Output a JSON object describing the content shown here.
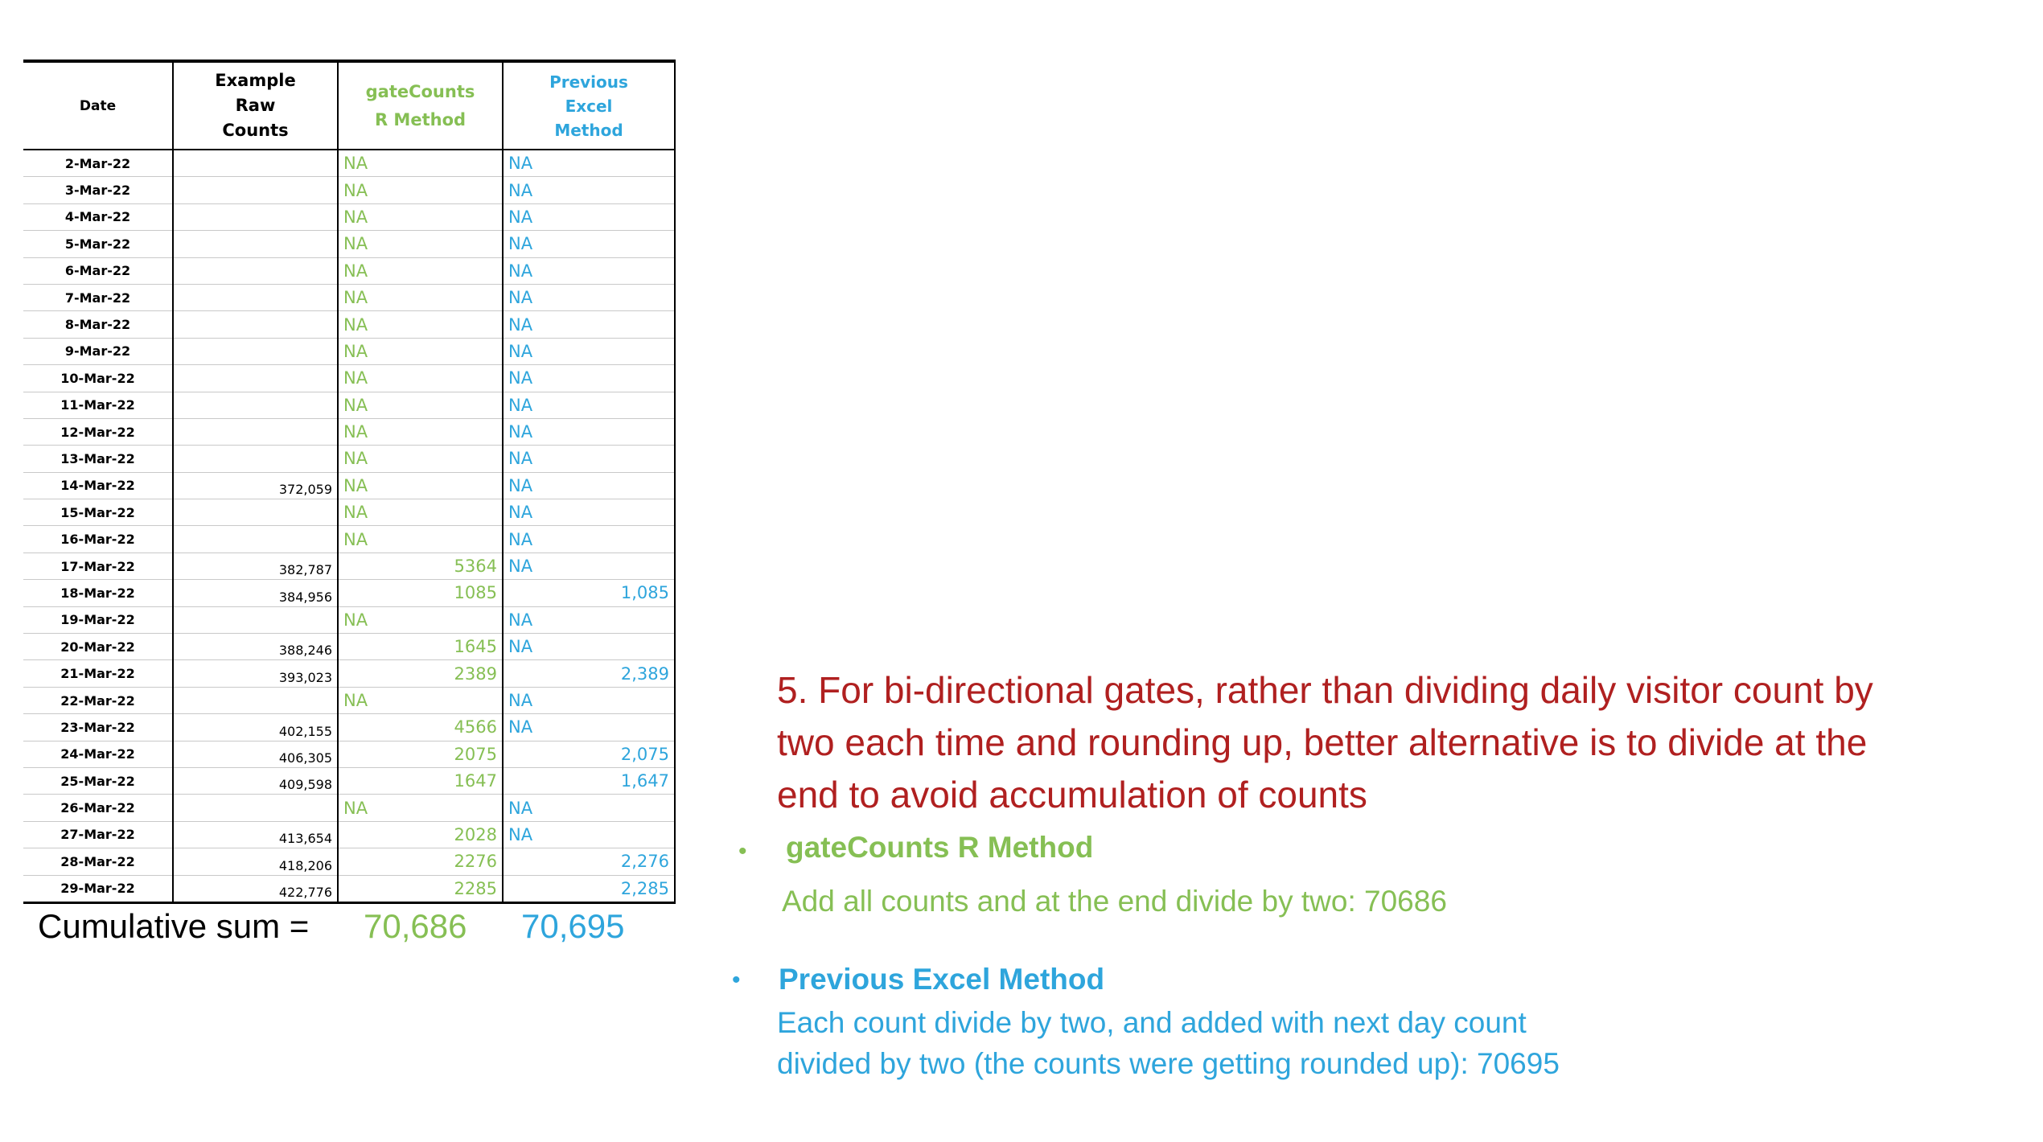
{
  "table": {
    "headers": {
      "date": "Date",
      "raw": [
        "Example",
        "Raw",
        "Counts"
      ],
      "r_method": [
        "gateCounts",
        "R Method"
      ],
      "excel_method": [
        "Previous",
        "Excel",
        "Method"
      ]
    },
    "rows": [
      {
        "date": "2-Mar-22",
        "raw": "",
        "r": "NA",
        "excel": "NA"
      },
      {
        "date": "3-Mar-22",
        "raw": "",
        "r": "NA",
        "excel": "NA"
      },
      {
        "date": "4-Mar-22",
        "raw": "",
        "r": "NA",
        "excel": "NA"
      },
      {
        "date": "5-Mar-22",
        "raw": "",
        "r": "NA",
        "excel": "NA"
      },
      {
        "date": "6-Mar-22",
        "raw": "",
        "r": "NA",
        "excel": "NA"
      },
      {
        "date": "7-Mar-22",
        "raw": "",
        "r": "NA",
        "excel": "NA"
      },
      {
        "date": "8-Mar-22",
        "raw": "",
        "r": "NA",
        "excel": "NA"
      },
      {
        "date": "9-Mar-22",
        "raw": "",
        "r": "NA",
        "excel": "NA"
      },
      {
        "date": "10-Mar-22",
        "raw": "",
        "r": "NA",
        "excel": "NA"
      },
      {
        "date": "11-Mar-22",
        "raw": "",
        "r": "NA",
        "excel": "NA"
      },
      {
        "date": "12-Mar-22",
        "raw": "",
        "r": "NA",
        "excel": "NA"
      },
      {
        "date": "13-Mar-22",
        "raw": "",
        "r": "NA",
        "excel": "NA"
      },
      {
        "date": "14-Mar-22",
        "raw": "372,059",
        "r": "NA",
        "excel": "NA"
      },
      {
        "date": "15-Mar-22",
        "raw": "",
        "r": "NA",
        "excel": "NA"
      },
      {
        "date": "16-Mar-22",
        "raw": "",
        "r": "NA",
        "excel": "NA"
      },
      {
        "date": "17-Mar-22",
        "raw": "382,787",
        "r": "5364",
        "excel": "NA"
      },
      {
        "date": "18-Mar-22",
        "raw": "384,956",
        "r": "1085",
        "excel": "1,085"
      },
      {
        "date": "19-Mar-22",
        "raw": "",
        "r": "NA",
        "excel": "NA"
      },
      {
        "date": "20-Mar-22",
        "raw": "388,246",
        "r": "1645",
        "excel": "NA"
      },
      {
        "date": "21-Mar-22",
        "raw": "393,023",
        "r": "2389",
        "excel": "2,389"
      },
      {
        "date": "22-Mar-22",
        "raw": "",
        "r": "NA",
        "excel": "NA"
      },
      {
        "date": "23-Mar-22",
        "raw": "402,155",
        "r": "4566",
        "excel": "NA"
      },
      {
        "date": "24-Mar-22",
        "raw": "406,305",
        "r": "2075",
        "excel": "2,075"
      },
      {
        "date": "25-Mar-22",
        "raw": "409,598",
        "r": "1647",
        "excel": "1,647"
      },
      {
        "date": "26-Mar-22",
        "raw": "",
        "r": "NA",
        "excel": "NA"
      },
      {
        "date": "27-Mar-22",
        "raw": "413,654",
        "r": "2028",
        "excel": "NA"
      },
      {
        "date": "28-Mar-22",
        "raw": "418,206",
        "r": "2276",
        "excel": "2,276"
      },
      {
        "date": "29-Mar-22",
        "raw": "422,776",
        "r": "2285",
        "excel": "2,285"
      }
    ]
  },
  "cumulative": {
    "label": "Cumulative sum =",
    "r_value": "70,686",
    "excel_value": "70,695"
  },
  "headline": "5. For bi-directional gates, rather than dividing daily visitor count by two each time and rounding up, better alternative is to divide at the end to avoid accumulation  of counts",
  "bullets": {
    "r_method": {
      "title": "gateCounts R Method",
      "text": "Add all counts and at the end divide by two: 70686"
    },
    "excel_method": {
      "title": "Previous Excel Method",
      "text_lines": [
        "Each count divide by two, and added with next day count",
        "divided by two (the counts were getting rounded up): 70695"
      ]
    }
  },
  "colors": {
    "r_method": "#86bf54",
    "excel_method": "#2ea5dc",
    "headline": "#b02020"
  }
}
